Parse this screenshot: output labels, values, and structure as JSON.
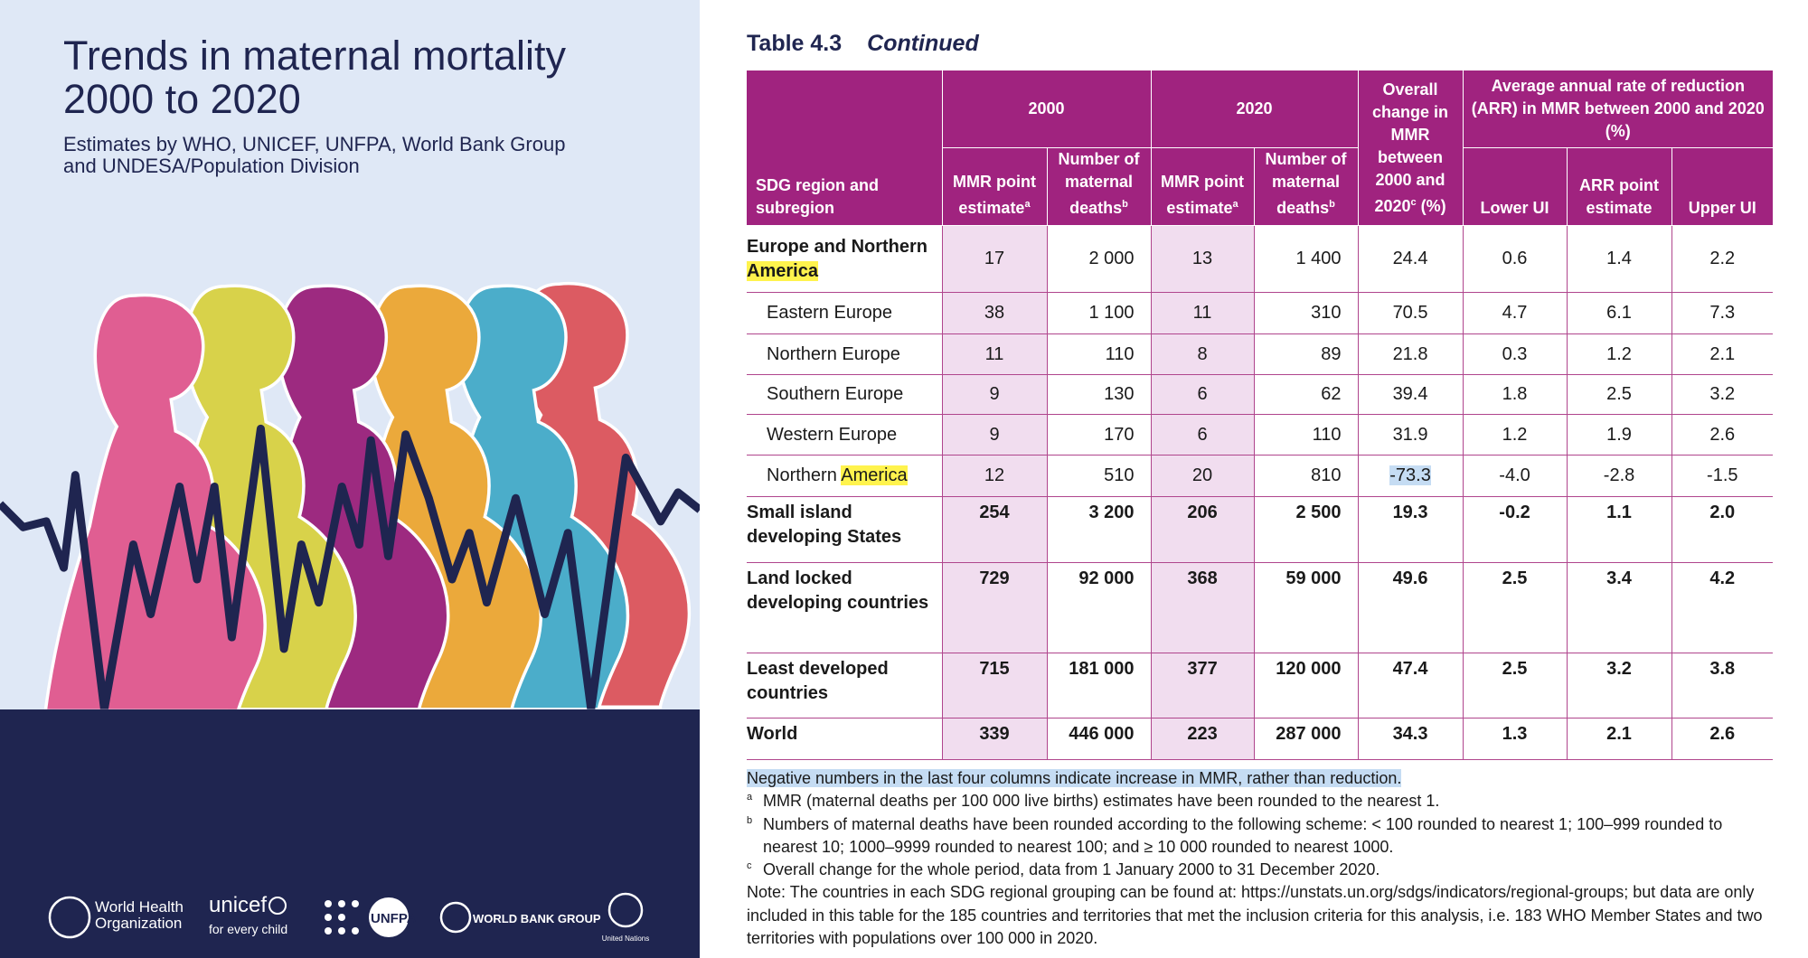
{
  "cover": {
    "title": [
      "Trends in maternal mortality",
      "2000 to 2020"
    ],
    "subtitle": [
      "Estimates by WHO, UNICEF, UNFPA, World Bank Group",
      "and UNDESA/Population Division"
    ],
    "logos": {
      "who": [
        "World Health",
        "Organization"
      ],
      "unicef": "unicef",
      "unicef_tagline": "for every child",
      "unfpa": "UNFPA",
      "world_bank": "WORLD BANK GROUP",
      "un": "United Nations"
    }
  },
  "table": {
    "caption": "Table 4.3",
    "caption_note": "Continued",
    "header": {
      "region": {
        "text": "SDG region and subregion"
      },
      "year_2000": {
        "text": "2000"
      },
      "year_2020": {
        "text": "2020"
      },
      "change": {
        "text": "Overall change in MMR between 2000 and 2020",
        "sup": "c",
        "after": " (%)"
      },
      "arr": {
        "text": "Average annual rate of reduction (ARR) in MMR between 2000 and 2020 (%)"
      },
      "sub": [
        {
          "text": "MMR point estimate",
          "sup": "a"
        },
        {
          "text": "Number of maternal deaths",
          "sup": "b"
        },
        {
          "text": "MMR point estimate",
          "sup": "a"
        },
        {
          "text": "Number of maternal deaths",
          "sup": "b"
        },
        {
          "text": "Lower UI"
        },
        {
          "text": "ARR point estimate"
        },
        {
          "text": "Upper UI"
        }
      ]
    },
    "rows": [
      {
        "label": [
          "Europe and Northern ",
          "America"
        ],
        "label_highlight": 1,
        "bold_label": true,
        "bold_values": false,
        "indent": false,
        "values": [
          "17",
          "2 000",
          "13",
          "1 400",
          "24.4",
          "0.6",
          "1.4",
          "2.2"
        ]
      },
      {
        "label": [
          "Eastern Europe"
        ],
        "bold_label": false,
        "bold_values": false,
        "indent": true,
        "values": [
          "38",
          "1 100",
          "11",
          "310",
          "70.5",
          "4.7",
          "6.1",
          "7.3"
        ]
      },
      {
        "label": [
          "Northern Europe"
        ],
        "bold_label": false,
        "bold_values": false,
        "indent": true,
        "values": [
          "11",
          "110",
          "8",
          "89",
          "21.8",
          "0.3",
          "1.2",
          "2.1"
        ]
      },
      {
        "label": [
          "Southern Europe"
        ],
        "bold_label": false,
        "bold_values": false,
        "indent": true,
        "values": [
          "9",
          "130",
          "6",
          "62",
          "39.4",
          "1.8",
          "2.5",
          "3.2"
        ]
      },
      {
        "label": [
          "Western Europe"
        ],
        "bold_label": false,
        "bold_values": false,
        "indent": true,
        "values": [
          "9",
          "170",
          "6",
          "110",
          "31.9",
          "1.2",
          "1.9",
          "2.6"
        ]
      },
      {
        "label": [
          "Northern ",
          "America"
        ],
        "label_highlight": 1,
        "value_highlight": 4,
        "bold_label": false,
        "bold_values": false,
        "indent": true,
        "values": [
          "12",
          "510",
          "20",
          "810",
          "-73.3",
          "-4.0",
          "-2.8",
          "-1.5"
        ]
      },
      {
        "label": [
          "Small island developing States"
        ],
        "bold_label": true,
        "bold_values": true,
        "indent": false,
        "values": [
          "254",
          "3 200",
          "206",
          "2 500",
          "19.3",
          "-0.2",
          "1.1",
          "2.0"
        ]
      },
      {
        "label": [
          "Land locked developing countries"
        ],
        "bold_label": true,
        "bold_values": true,
        "indent": false,
        "values": [
          "729",
          "92 000",
          "368",
          "59 000",
          "49.6",
          "2.5",
          "3.4",
          "4.2"
        ]
      },
      {
        "label": [
          "Least developed countries"
        ],
        "bold_label": true,
        "bold_values": true,
        "indent": false,
        "values": [
          "715",
          "181 000",
          "377",
          "120 000",
          "47.4",
          "2.5",
          "3.2",
          "3.8"
        ]
      },
      {
        "label": [
          "World"
        ],
        "bold_label": true,
        "bold_values": true,
        "indent": false,
        "values": [
          "339",
          "446 000",
          "223",
          "287 000",
          "34.3",
          "1.3",
          "2.1",
          "2.6"
        ]
      }
    ],
    "notes": [
      {
        "text": "Negative numbers in the last four columns indicate increase in MMR, rather than reduction.",
        "highlight": true
      },
      {
        "mark": "a",
        "text": "MMR (maternal deaths per 100 000 live births) estimates have been rounded to the nearest 1."
      },
      {
        "mark": "b",
        "text": "Numbers of maternal deaths have been rounded according to the following scheme: < 100 rounded to nearest 1; 100–999 rounded to nearest 10; 1000–9999 rounded to nearest 100; and ≥ 10 000 rounded to nearest 1000."
      },
      {
        "mark": "c",
        "text": "Overall change for the whole period, data from 1 January 2000 to 31 December 2020."
      },
      {
        "text": "Note: The countries in each SDG regional grouping can be found at: https://unstats.un.org/sdgs/indicators/regional-groups; but data are only included in this table for the 185 countries and territories that met the inclusion criteria for this analysis, i.e. 183 WHO Member States and two territories with populations over 100 000 in 2020."
      }
    ]
  }
}
